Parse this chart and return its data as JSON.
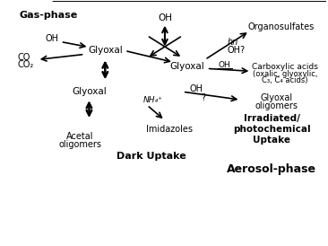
{
  "bg_color": "#ffffff",
  "aerosol_dark_color": "#aaaaaa",
  "aerosol_light_color": "#cccccc",
  "gas_phase_label": "Gas-phase",
  "aerosol_phase_label": "Aerosol-phase",
  "dark_uptake_label": "Dark Uptake",
  "irradiated_label": "Irradiated/\nphotochemical\nUptake"
}
